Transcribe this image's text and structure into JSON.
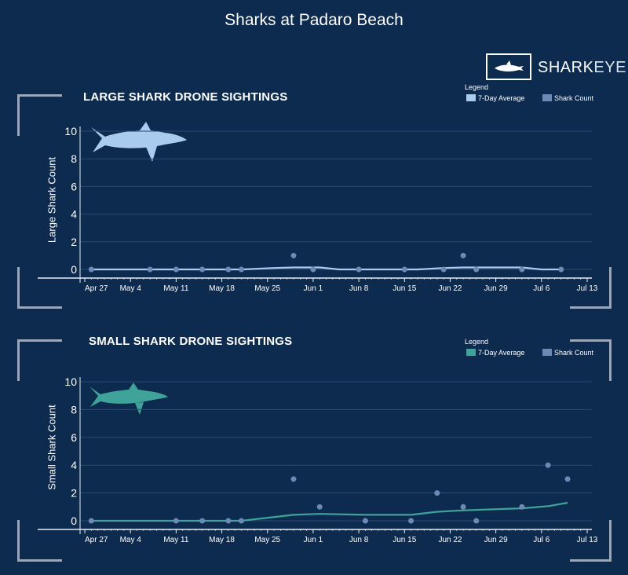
{
  "page": {
    "title": "Sharks at Padaro Beach"
  },
  "logo": {
    "box_icon": "shark-icon",
    "text_bold": "SHARK",
    "text_thin": "EYE"
  },
  "colors": {
    "background": "#0d2b4e",
    "large_avg": "#a9cbee",
    "small_avg": "#3fa39a",
    "count_dot": "#6b8ab5",
    "grid": "#2a4a70",
    "axis": "#e8eef5"
  },
  "charts": [
    {
      "title": "LARGE SHARK DRONE SIGHTINGS",
      "shark_icon": "large-shark-icon",
      "legend": {
        "title": "Legend",
        "items": [
          "7-Day Average",
          "Shark Count"
        ]
      },
      "chart_data": {
        "type": "line",
        "title": "LARGE SHARK DRONE SIGHTINGS",
        "xlabel": "",
        "ylabel": "Large Shark Count",
        "ylim": [
          0,
          10
        ],
        "yticks": [
          0,
          2,
          4,
          6,
          8,
          10
        ],
        "xlim": [
          "2024-04-27",
          "2024-07-13"
        ],
        "xtick_labels": [
          "Apr 27",
          "May 4",
          "May 11",
          "May 18",
          "May 25",
          "Jun 1",
          "Jun 8",
          "Jun 15",
          "Jun 22",
          "Jun 29",
          "Jul 6",
          "Jul 13"
        ],
        "grid": true,
        "legend_position": "top-right",
        "series": [
          {
            "name": "Shark Count",
            "kind": "scatter",
            "points": [
              [
                "2024-04-28",
                0
              ],
              [
                "2024-05-07",
                0
              ],
              [
                "2024-05-11",
                0
              ],
              [
                "2024-05-15",
                0
              ],
              [
                "2024-05-19",
                0
              ],
              [
                "2024-05-21",
                0
              ],
              [
                "2024-05-29",
                1
              ],
              [
                "2024-06-01",
                0
              ],
              [
                "2024-06-08",
                0
              ],
              [
                "2024-06-15",
                0
              ],
              [
                "2024-06-21",
                0
              ],
              [
                "2024-06-24",
                1
              ],
              [
                "2024-06-26",
                0
              ],
              [
                "2024-07-03",
                0
              ],
              [
                "2024-07-09",
                0
              ]
            ]
          },
          {
            "name": "7-Day Average",
            "kind": "line",
            "points": [
              [
                "2024-04-28",
                0
              ],
              [
                "2024-05-21",
                0
              ],
              [
                "2024-05-26",
                0.1
              ],
              [
                "2024-05-29",
                0.14
              ],
              [
                "2024-06-02",
                0.14
              ],
              [
                "2024-06-05",
                0
              ],
              [
                "2024-06-17",
                0
              ],
              [
                "2024-06-21",
                0.1
              ],
              [
                "2024-06-24",
                0.14
              ],
              [
                "2024-07-03",
                0.14
              ],
              [
                "2024-07-06",
                0
              ],
              [
                "2024-07-09",
                0
              ]
            ]
          }
        ]
      }
    },
    {
      "title": "SMALL SHARK DRONE SIGHTINGS",
      "shark_icon": "small-shark-icon",
      "legend": {
        "title": "Legend",
        "items": [
          "7-Day Average",
          "Shark Count"
        ]
      },
      "chart_data": {
        "type": "line",
        "title": "SMALL SHARK DRONE SIGHTINGS",
        "xlabel": "",
        "ylabel": "Small Shark Count",
        "ylim": [
          0,
          10
        ],
        "yticks": [
          0,
          2,
          4,
          6,
          8,
          10
        ],
        "xlim": [
          "2024-04-27",
          "2024-07-13"
        ],
        "xtick_labels": [
          "Apr 27",
          "May 4",
          "May 11",
          "May 18",
          "May 25",
          "Jun 1",
          "Jun 8",
          "Jun 15",
          "Jun 22",
          "Jun 29",
          "Jul 6",
          "Jul 13"
        ],
        "grid": true,
        "legend_position": "top-right",
        "series": [
          {
            "name": "Shark Count",
            "kind": "scatter",
            "points": [
              [
                "2024-04-28",
                0
              ],
              [
                "2024-05-11",
                0
              ],
              [
                "2024-05-15",
                0
              ],
              [
                "2024-05-19",
                0
              ],
              [
                "2024-05-21",
                0
              ],
              [
                "2024-05-29",
                3
              ],
              [
                "2024-06-02",
                1
              ],
              [
                "2024-06-09",
                0
              ],
              [
                "2024-06-16",
                0
              ],
              [
                "2024-06-20",
                2
              ],
              [
                "2024-06-24",
                1
              ],
              [
                "2024-06-26",
                0
              ],
              [
                "2024-07-03",
                1
              ],
              [
                "2024-07-07",
                4
              ],
              [
                "2024-07-10",
                3
              ]
            ]
          },
          {
            "name": "7-Day Average",
            "kind": "line",
            "points": [
              [
                "2024-04-28",
                0
              ],
              [
                "2024-05-21",
                0
              ],
              [
                "2024-05-29",
                0.43
              ],
              [
                "2024-06-02",
                0.5
              ],
              [
                "2024-06-09",
                0.43
              ],
              [
                "2024-06-16",
                0.43
              ],
              [
                "2024-06-20",
                0.65
              ],
              [
                "2024-06-24",
                0.75
              ],
              [
                "2024-07-03",
                0.9
              ],
              [
                "2024-07-07",
                1.05
              ],
              [
                "2024-07-10",
                1.3
              ]
            ]
          }
        ]
      }
    }
  ]
}
